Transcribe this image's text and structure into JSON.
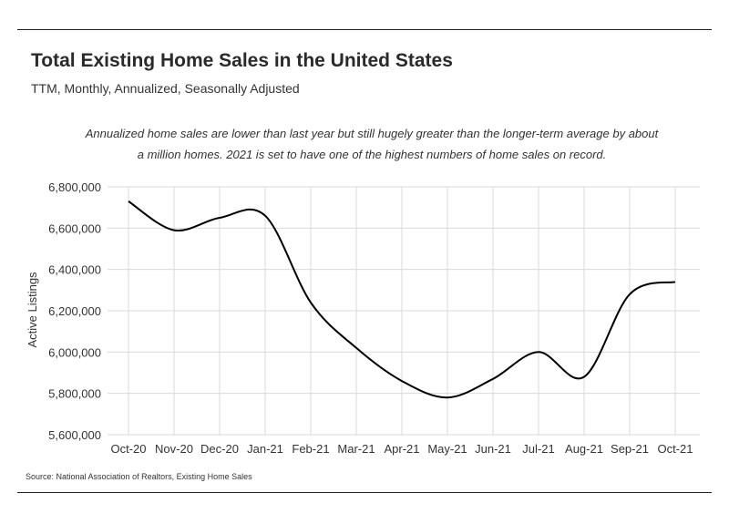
{
  "header": {
    "title": "Total Existing Home Sales in the United States",
    "subtitle": "TTM, Monthly, Annualized, Seasonally Adjusted"
  },
  "annotation": "Annualized home sales are lower than last year but still hugely greater than the longer-term average by about a million homes. 2021 is set to have one of the highest numbers of home sales on record.",
  "source": "Source:  National Association of Realtors, Existing Home Sales",
  "chart_data": {
    "type": "line",
    "title": "Total Existing Home Sales in the United States",
    "subtitle": "TTM, Monthly, Annualized, Seasonally Adjusted",
    "xlabel": "",
    "ylabel": "Active Listings",
    "categories": [
      "Oct-20",
      "Nov-20",
      "Dec-20",
      "Jan-21",
      "Feb-21",
      "Mar-21",
      "Apr-21",
      "May-21",
      "Jun-21",
      "Jul-21",
      "Aug-21",
      "Sep-21",
      "Oct-21"
    ],
    "series": [
      {
        "values": [
          6730000,
          6590000,
          6650000,
          6660000,
          6240000,
          6020000,
          5860000,
          5780000,
          5870000,
          6000000,
          5880000,
          6280000,
          6340000
        ]
      }
    ],
    "ylim": [
      5600000,
      6800000
    ],
    "yticks": [
      "5,600,000",
      "5,800,000",
      "6,000,000",
      "6,200,000",
      "6,400,000",
      "6,600,000",
      "6,800,000"
    ],
    "yticks_values": [
      5600000,
      5800000,
      6000000,
      6200000,
      6400000,
      6600000,
      6800000
    ],
    "grid": true,
    "line_color": "#000000",
    "grid_color": "#d9d9d9"
  }
}
